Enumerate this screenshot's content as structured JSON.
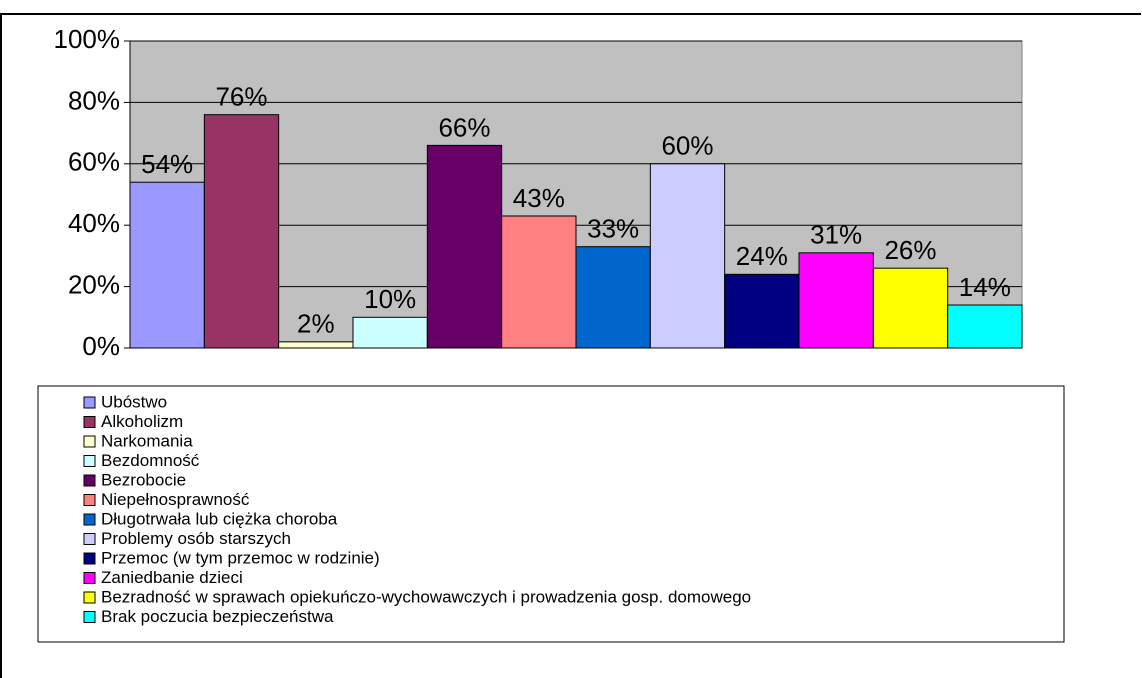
{
  "chart_data": {
    "type": "bar",
    "categories": [
      null
    ],
    "series": [
      {
        "name": "Ubóstwo",
        "color": "#9999ff",
        "values": [
          54
        ],
        "value_labels": [
          "54%"
        ]
      },
      {
        "name": "Alkoholizm",
        "color": "#993366",
        "values": [
          76
        ],
        "value_labels": [
          "76%"
        ]
      },
      {
        "name": "Narkomania",
        "color": "#ffffcc",
        "values": [
          2
        ],
        "value_labels": [
          "2%"
        ]
      },
      {
        "name": "Bezdomność",
        "color": "#ccffff",
        "values": [
          10
        ],
        "value_labels": [
          "10%"
        ]
      },
      {
        "name": "Bezrobocie",
        "color": "#660066",
        "values": [
          66
        ],
        "value_labels": [
          "66%"
        ]
      },
      {
        "name": "Niepełnosprawność",
        "color": "#ff8080",
        "values": [
          43
        ],
        "value_labels": [
          "43%"
        ]
      },
      {
        "name": "Długotrwała lub ciężka choroba",
        "color": "#0066cc",
        "values": [
          33
        ],
        "value_labels": [
          "33%"
        ]
      },
      {
        "name": "Problemy osób starszych",
        "color": "#ccccff",
        "values": [
          60
        ],
        "value_labels": [
          "60%"
        ]
      },
      {
        "name": "Przemoc (w tym przemoc w rodzinie)",
        "color": "#000080",
        "values": [
          24
        ],
        "value_labels": [
          "24%"
        ]
      },
      {
        "name": "Zaniedbanie dzieci",
        "color": "#ff00ff",
        "values": [
          31
        ],
        "value_labels": [
          "31%"
        ]
      },
      {
        "name": "Bezradność w sprawach opiekuńczo-wychowawczych i prowadzenia gosp. domowego",
        "color": "#ffff00",
        "values": [
          26
        ],
        "value_labels": [
          "26%"
        ]
      },
      {
        "name": "Brak poczucia bezpieczeństwa",
        "color": "#00ffff",
        "values": [
          14
        ],
        "value_labels": [
          "14%"
        ]
      }
    ],
    "ylim": [
      0,
      100
    ],
    "yticks": [
      {
        "value": 0,
        "label": "0%"
      },
      {
        "value": 20,
        "label": "20%"
      },
      {
        "value": 40,
        "label": "40%"
      },
      {
        "value": 60,
        "label": "60%"
      },
      {
        "value": 80,
        "label": "80%"
      },
      {
        "value": 100,
        "label": "100%"
      }
    ],
    "grid": true,
    "plot_background": "#c0c0c0"
  }
}
